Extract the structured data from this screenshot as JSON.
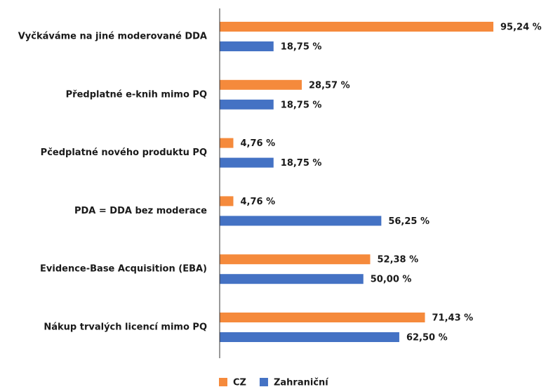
{
  "chart_data": {
    "type": "bar",
    "orientation": "horizontal",
    "categories": [
      "Vyčkáváme na jiné moderované DDA",
      "Předplatné e-knih mimo PQ",
      "Pčedplatné nového produktu PQ",
      "PDA = DDA bez moderace",
      "Evidence-Base Acquisition (EBA)",
      "Nákup trvalých licencí mimo PQ"
    ],
    "series": [
      {
        "name": "CZ",
        "color": "#f58a3c",
        "values": [
          95.24,
          28.57,
          4.76,
          4.76,
          52.38,
          71.43
        ],
        "value_labels": [
          "95,24 %",
          "28,57 %",
          "4,76 %",
          "4,76 %",
          "52,38 %",
          "71,43 %"
        ]
      },
      {
        "name": "Zahraniční",
        "color": "#4472c4",
        "values": [
          18.75,
          18.75,
          18.75,
          56.25,
          50.0,
          62.5
        ],
        "value_labels": [
          "18,75 %",
          "18,75 %",
          "18,75 %",
          "56,25 %",
          "50,00 %",
          "62,50 %"
        ]
      }
    ],
    "xlim": [
      0,
      100
    ],
    "legend": "bottom"
  }
}
